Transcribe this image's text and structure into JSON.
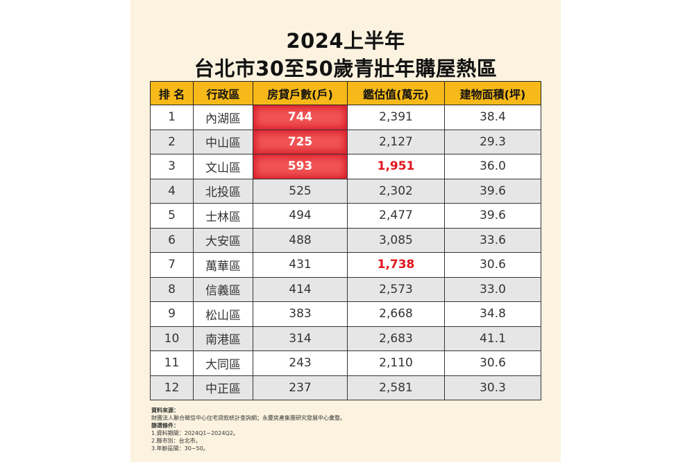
{
  "title": {
    "line1": "2024上半年",
    "line2": "台北市30至50歲青壯年購屋熱區"
  },
  "table": {
    "headers": [
      "排 名",
      "行政區",
      "房貸戶數(戶)",
      "鑑估值(萬元)",
      "建物面積(坪)"
    ],
    "rows": [
      {
        "rank": "1",
        "district": "內湖區",
        "loans": "744",
        "value": "2,391",
        "area": "38.4"
      },
      {
        "rank": "2",
        "district": "中山區",
        "loans": "725",
        "value": "2,127",
        "area": "29.3"
      },
      {
        "rank": "3",
        "district": "文山區",
        "loans": "593",
        "value": "1,951",
        "area": "36.0"
      },
      {
        "rank": "4",
        "district": "北投區",
        "loans": "525",
        "value": "2,302",
        "area": "39.6"
      },
      {
        "rank": "5",
        "district": "士林區",
        "loans": "494",
        "value": "2,477",
        "area": "39.6"
      },
      {
        "rank": "6",
        "district": "大安區",
        "loans": "488",
        "value": "3,085",
        "area": "33.6"
      },
      {
        "rank": "7",
        "district": "萬華區",
        "loans": "431",
        "value": "1,738",
        "area": "30.6"
      },
      {
        "rank": "8",
        "district": "信義區",
        "loans": "414",
        "value": "2,573",
        "area": "33.0"
      },
      {
        "rank": "9",
        "district": "松山區",
        "loans": "383",
        "value": "2,668",
        "area": "34.8"
      },
      {
        "rank": "10",
        "district": "南港區",
        "loans": "314",
        "value": "2,683",
        "area": "41.1"
      },
      {
        "rank": "11",
        "district": "大同區",
        "loans": "243",
        "value": "2,110",
        "area": "30.6"
      },
      {
        "rank": "12",
        "district": "中正區",
        "loans": "237",
        "value": "2,581",
        "area": "30.3"
      }
    ]
  },
  "notes": {
    "source_label": "資料來源：",
    "source_text": "財團法人聯合徵信中心住宅貸款統計查詢網；永慶房產集團研究發展中心彙整。",
    "filter_label": "篩選條件：",
    "filter1": "1.資料期間：2024Q1~2024Q2。",
    "filter2": "2.縣市別：台北市。",
    "filter3": "3.年齡區間：30~50。"
  },
  "colors": {
    "header_bg": "#f6b919",
    "panel_bg": "#fbf3e0",
    "highlight_red": "#e0141c"
  }
}
